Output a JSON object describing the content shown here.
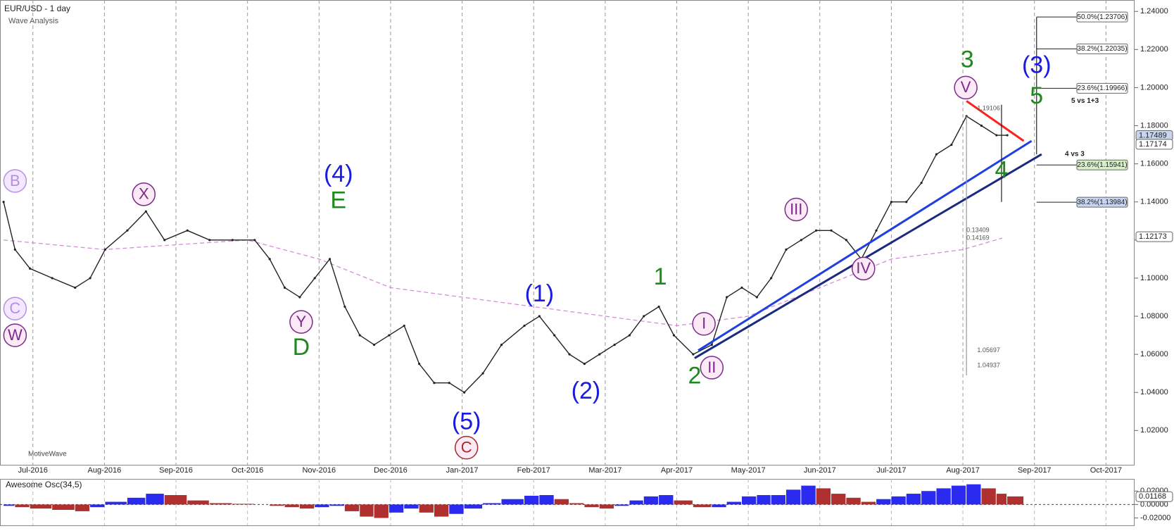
{
  "chart_data": [
    {
      "type": "line",
      "title": "EUR/USD - 1 day",
      "subtitle": "Wave Analysis",
      "footer": "MotiveWave",
      "xlim": [
        0.54,
        16.4
      ],
      "ylim": [
        1.002,
        1.246
      ],
      "xticks": [
        {
          "value": 1,
          "label": "Jul-2016"
        },
        {
          "value": 2,
          "label": "Aug-2016"
        },
        {
          "value": 3,
          "label": "Sep-2016"
        },
        {
          "value": 4,
          "label": "Oct-2016"
        },
        {
          "value": 5,
          "label": "Nov-2016"
        },
        {
          "value": 6,
          "label": "Dec-2016"
        },
        {
          "value": 7,
          "label": "Jan-2017"
        },
        {
          "value": 8,
          "label": "Feb-2017"
        },
        {
          "value": 9,
          "label": "Mar-2017"
        },
        {
          "value": 10,
          "label": "Apr-2017"
        },
        {
          "value": 11,
          "label": "May-2017"
        },
        {
          "value": 12,
          "label": "Jun-2017"
        },
        {
          "value": 13,
          "label": "Jul-2017"
        },
        {
          "value": 14,
          "label": "Aug-2017"
        },
        {
          "value": 15,
          "label": "Sep-2017"
        },
        {
          "value": 16,
          "label": "Oct-2017"
        }
      ],
      "yticks": [
        {
          "value": 1.02,
          "label": "1.02000"
        },
        {
          "value": 1.04,
          "label": "1.04000"
        },
        {
          "value": 1.06,
          "label": "1.06000"
        },
        {
          "value": 1.08,
          "label": "1.08000"
        },
        {
          "value": 1.1,
          "label": "1.10000"
        },
        {
          "value": 1.12,
          "label": "1.12000"
        },
        {
          "value": 1.14,
          "label": "1.14000"
        },
        {
          "value": 1.16,
          "label": "1.16000"
        },
        {
          "value": 1.18,
          "label": "1.18000"
        },
        {
          "value": 1.2,
          "label": "1.20000"
        },
        {
          "value": 1.22,
          "label": "1.22000"
        },
        {
          "value": 1.24,
          "label": "1.24000"
        }
      ],
      "grid": true,
      "x": [
        0.59,
        0.75,
        0.96,
        1.27,
        1.59,
        1.8,
        2.01,
        2.32,
        2.58,
        2.84,
        3.16,
        3.47,
        3.79,
        4.1,
        4.31,
        4.52,
        4.73,
        4.94,
        5.15,
        5.36,
        5.57,
        5.77,
        5.98,
        6.19,
        6.4,
        6.61,
        6.82,
        7.03,
        7.29,
        7.55,
        7.87,
        8.08,
        8.29,
        8.5,
        8.71,
        8.92,
        9.13,
        9.34,
        9.54,
        9.75,
        9.96,
        10.23,
        10.49,
        10.7,
        10.91,
        11.12,
        11.32,
        11.53,
        11.74,
        11.95,
        12.16,
        12.37,
        12.58,
        12.79,
        13.0,
        13.21,
        13.42,
        13.63,
        13.84,
        14.05,
        14.26,
        14.47,
        14.62
      ],
      "series": [
        {
          "color": "#222222",
          "values": [
            1.14,
            1.115,
            1.105,
            1.1,
            1.095,
            1.1,
            1.115,
            1.125,
            1.135,
            1.12,
            1.125,
            1.12,
            1.12,
            1.12,
            1.11,
            1.095,
            1.09,
            1.1,
            1.11,
            1.085,
            1.07,
            1.065,
            1.07,
            1.075,
            1.055,
            1.045,
            1.045,
            1.04,
            1.05,
            1.065,
            1.075,
            1.08,
            1.07,
            1.06,
            1.055,
            1.06,
            1.065,
            1.07,
            1.08,
            1.085,
            1.07,
            1.06,
            1.065,
            1.09,
            1.095,
            1.09,
            1.1,
            1.115,
            1.12,
            1.125,
            1.125,
            1.12,
            1.11,
            1.125,
            1.14,
            1.14,
            1.15,
            1.165,
            1.17,
            1.185,
            1.18,
            1.175,
            1.175
          ]
        }
      ],
      "moving_average": {
        "color": "#d58ed8",
        "x": [
          0.59,
          2,
          4,
          5,
          6,
          7,
          8,
          9,
          10,
          11,
          12,
          13,
          14,
          14.55
        ],
        "values": [
          1.12,
          1.115,
          1.12,
          1.11,
          1.095,
          1.09,
          1.085,
          1.08,
          1.075,
          1.08,
          1.095,
          1.11,
          1.115,
          1.121
        ]
      },
      "trendlines": [
        {
          "color": "#1a2a80",
          "x": [
            10.25,
            15.1
          ],
          "y": [
            1.058,
            1.165
          ]
        },
        {
          "color": "#1f3fe0",
          "x": [
            10.3,
            14.96
          ],
          "y": [
            1.062,
            1.172
          ]
        },
        {
          "color": "#ff2020",
          "x": [
            14.05,
            14.85
          ],
          "y": [
            1.193,
            1.172
          ]
        },
        {
          "color": "#222222",
          "x": [
            15.03,
            15.03
          ],
          "y": [
            1.165,
            1.237
          ]
        },
        {
          "color": "#999999",
          "x": [
            14.05,
            14.05
          ],
          "y": [
            1.185,
            1.049
          ]
        },
        {
          "color": "#222222",
          "x": [
            14.54,
            14.54
          ],
          "y": [
            1.191,
            1.14
          ]
        }
      ],
      "annotations": [
        {
          "text": "B",
          "x": 0.75,
          "y": 1.151,
          "color": "#b58fe0",
          "circled": true
        },
        {
          "text": "C",
          "x": 0.75,
          "y": 1.084,
          "color": "#b58fe0",
          "circled": true
        },
        {
          "text": "W",
          "x": 0.75,
          "y": 1.07,
          "color": "#7b2a8c",
          "circled": true
        },
        {
          "text": "X",
          "x": 2.55,
          "y": 1.144,
          "color": "#7b2a8c",
          "circled": true
        },
        {
          "text": "(4)",
          "x": 5.27,
          "y": 1.154,
          "color": "#1a1ae0",
          "circled": false
        },
        {
          "text": "E",
          "x": 5.27,
          "y": 1.14,
          "color": "#1e8a1e",
          "circled": false
        },
        {
          "text": "Y",
          "x": 4.75,
          "y": 1.077,
          "color": "#7b2a8c",
          "circled": true
        },
        {
          "text": "D",
          "x": 4.75,
          "y": 1.063,
          "color": "#1e8a1e",
          "circled": false
        },
        {
          "text": "(5)",
          "x": 7.06,
          "y": 1.024,
          "color": "#1a1ae0",
          "circled": false
        },
        {
          "text": "C",
          "x": 7.06,
          "y": 1.011,
          "color": "#a52a2a",
          "circled": true
        },
        {
          "text": "(1)",
          "x": 8.08,
          "y": 1.091,
          "color": "#1a1ae0",
          "circled": false
        },
        {
          "text": "(2)",
          "x": 8.73,
          "y": 1.04,
          "color": "#1a1ae0",
          "circled": false
        },
        {
          "text": "1",
          "x": 9.77,
          "y": 1.1,
          "color": "#1e8a1e",
          "circled": false
        },
        {
          "text": "2",
          "x": 10.25,
          "y": 1.048,
          "color": "#1e8a1e",
          "circled": false
        },
        {
          "text": "I",
          "x": 10.38,
          "y": 1.076,
          "color": "#7b2a8c",
          "circled": true
        },
        {
          "text": "II",
          "x": 10.49,
          "y": 1.053,
          "color": "#7b2a8c",
          "circled": true
        },
        {
          "text": "III",
          "x": 11.67,
          "y": 1.136,
          "color": "#7b2a8c",
          "circled": true
        },
        {
          "text": "IV",
          "x": 12.61,
          "y": 1.105,
          "color": "#7b2a8c",
          "circled": true
        },
        {
          "text": "3",
          "x": 14.06,
          "y": 1.214,
          "color": "#1e8a1e",
          "circled": false
        },
        {
          "text": "V",
          "x": 14.04,
          "y": 1.2,
          "color": "#7b2a8c",
          "circled": true
        },
        {
          "text": "(3)",
          "x": 15.03,
          "y": 1.211,
          "color": "#1a1ae0",
          "circled": false
        },
        {
          "text": "5",
          "x": 15.03,
          "y": 1.195,
          "color": "#1e8a1e",
          "circled": false
        },
        {
          "text": "4",
          "x": 14.54,
          "y": 1.156,
          "color": "#1e8a1e",
          "circled": false
        }
      ],
      "fib_levels": [
        {
          "value": 1.23706,
          "label": "50.0%(1.23706)",
          "color": "#ffffff"
        },
        {
          "value": 1.22035,
          "label": "38.2%(1.22035)",
          "color": "#ffffff"
        },
        {
          "value": 1.19966,
          "label": "23.6%(1.19966)",
          "color": "#ffffff"
        },
        {
          "value": 1.15941,
          "label": "23.6%(1.15941)",
          "color": "#d8f0c8"
        },
        {
          "value": 1.13984,
          "label": "38.2%(1.13984)",
          "color": "#c8d4f0"
        }
      ],
      "notes": [
        {
          "text": "5 vs 1+3",
          "x": 15.9,
          "y": 1.193
        },
        {
          "text": "4 vs 3",
          "x": 15.7,
          "y": 1.165
        }
      ],
      "measure_labels": [
        {
          "label": "1.19106",
          "x": 14.2,
          "y": 1.189
        },
        {
          "label": "0.13409",
          "x": 14.05,
          "y": 1.125
        },
        {
          "label": "0.14169",
          "x": 14.05,
          "y": 1.121
        },
        {
          "label": "1.05697",
          "x": 14.2,
          "y": 1.062
        },
        {
          "label": "1.04937",
          "x": 14.2,
          "y": 1.054
        }
      ],
      "price_markers": [
        {
          "value": 1.17489,
          "label": "1.17489",
          "color": "#c8d4f0"
        },
        {
          "value": 1.17174,
          "label": "1.17174",
          "color": "#ffffff"
        },
        {
          "value": 1.12173,
          "label": "1.12173",
          "color": "#ffffff"
        }
      ]
    },
    {
      "type": "bar",
      "title": "Awesome Osc(34,5)",
      "up_color": "#2a2af0",
      "down_color": "#b03030",
      "xlim": [
        0.54,
        16.4
      ],
      "ylim": [
        -0.031,
        0.037
      ],
      "yticks": [
        {
          "value": 0.02,
          "label": "0.02000"
        },
        {
          "value": 0,
          "label": "0.00000"
        },
        {
          "value": -0.02,
          "label": "-0.02000"
        }
      ],
      "x": [
        0.59,
        0.75,
        0.96,
        1.27,
        1.59,
        1.8,
        2.01,
        2.32,
        2.58,
        2.84,
        3.16,
        3.47,
        3.79,
        4.1,
        4.31,
        4.52,
        4.73,
        4.94,
        5.15,
        5.36,
        5.57,
        5.77,
        5.98,
        6.19,
        6.4,
        6.61,
        6.82,
        7.03,
        7.29,
        7.55,
        7.87,
        8.08,
        8.29,
        8.5,
        8.71,
        8.92,
        9.13,
        9.34,
        9.54,
        9.75,
        9.96,
        10.23,
        10.49,
        10.7,
        10.91,
        11.12,
        11.32,
        11.53,
        11.74,
        11.95,
        12.16,
        12.37,
        12.58,
        12.79,
        13.0,
        13.21,
        13.42,
        13.63,
        13.84,
        14.05,
        14.26,
        14.47,
        14.62
      ],
      "values": [
        -0.002,
        -0.004,
        -0.006,
        -0.008,
        -0.01,
        -0.004,
        0.004,
        0.01,
        0.016,
        0.014,
        0.006,
        0.002,
        0.001,
        0,
        -0.002,
        -0.004,
        -0.006,
        -0.004,
        -0.002,
        -0.01,
        -0.018,
        -0.02,
        -0.012,
        -0.006,
        -0.012,
        -0.018,
        -0.014,
        -0.006,
        0.002,
        0.008,
        0.013,
        0.014,
        0.008,
        0.002,
        -0.004,
        -0.006,
        -0.002,
        0.006,
        0.012,
        0.014,
        0.006,
        -0.004,
        -0.004,
        0.004,
        0.012,
        0.014,
        0.014,
        0.022,
        0.028,
        0.024,
        0.016,
        0.01,
        0.004,
        0.008,
        0.012,
        0.016,
        0.02,
        0.024,
        0.028,
        0.03,
        0.024,
        0.016,
        0.012
      ],
      "current": {
        "value": 0.01168,
        "label": "0.01168"
      }
    }
  ]
}
